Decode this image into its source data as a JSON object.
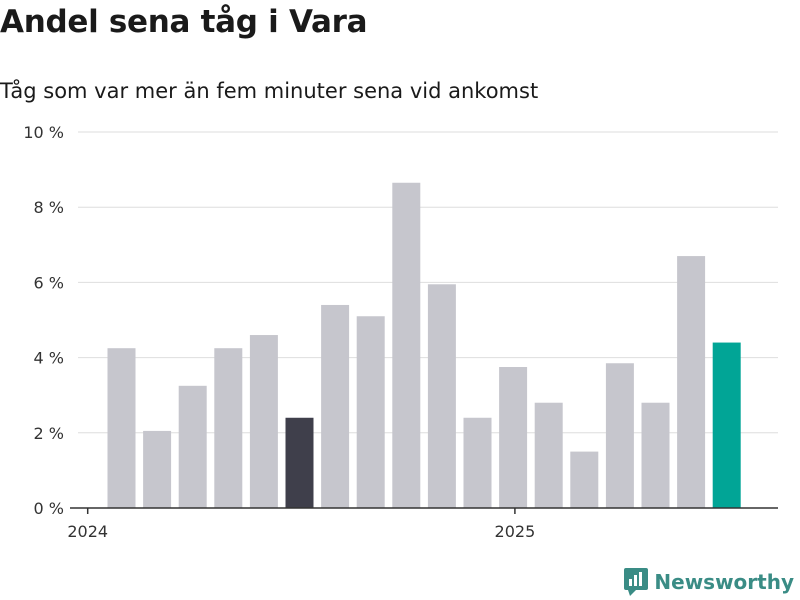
{
  "title": "Andel sena tåg i Vara",
  "subtitle": "Tåg som var mer än fem minuter sena vid ankomst",
  "brand": {
    "name": "Newsworthy",
    "icon": "newsworthy-logo-icon"
  },
  "colors": {
    "default_bar": "#c6c6cd",
    "highlight_dark": "#3f3f4b",
    "highlight_teal": "#01a596",
    "grid": "#dedede",
    "axis": "#333333"
  },
  "chart_data": {
    "type": "bar",
    "title": "Andel sena tåg i Vara",
    "subtitle": "Tåg som var mer än fem minuter sena vid ankomst",
    "xlabel": "",
    "ylabel": "",
    "ylim": [
      0,
      10
    ],
    "yticks": [
      0,
      2,
      4,
      6,
      8,
      10
    ],
    "ytick_labels": [
      "0 %",
      "2 %",
      "4 %",
      "6 %",
      "8 %",
      "10 %"
    ],
    "xtick_labels": [
      {
        "label": "2024",
        "at_index": -0.5
      },
      {
        "label": "2025",
        "at_index": 11.5
      }
    ],
    "grid": true,
    "legend": "none",
    "categories": [
      "2024-01",
      "2024-02",
      "2024-03",
      "2024-04",
      "2024-05",
      "2024-06",
      "2024-07",
      "2024-08",
      "2024-09",
      "2024-10",
      "2024-11",
      "2024-12",
      "2025-01",
      "2025-02",
      "2025-03",
      "2025-04",
      "2025-05",
      "2025-06"
    ],
    "values": [
      4.25,
      2.05,
      3.25,
      4.25,
      4.6,
      2.4,
      5.4,
      5.1,
      8.65,
      5.95,
      2.4,
      3.75,
      2.8,
      1.5,
      3.85,
      2.8,
      6.7,
      4.4
    ],
    "highlights": {
      "5": "dark",
      "17": "teal"
    }
  }
}
